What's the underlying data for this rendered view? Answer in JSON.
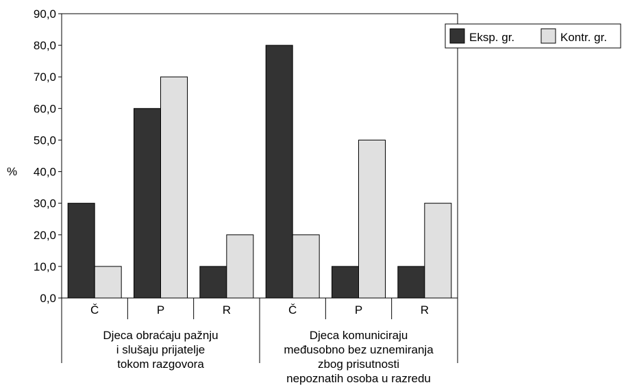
{
  "chart_data": {
    "type": "bar",
    "ylabel": "%",
    "ylim": [
      0,
      90
    ],
    "yticks": [
      "0,0",
      "10,0",
      "20,0",
      "30,0",
      "40,0",
      "50,0",
      "60,0",
      "70,0",
      "80,0",
      "90,0"
    ],
    "categories": [
      "Č",
      "P",
      "R",
      "Č",
      "P",
      "R"
    ],
    "groups": [
      {
        "lines": [
          "Djeca obraćaju pažnju",
          "i slušaju prijatelje",
          "tokom razgovora"
        ]
      },
      {
        "lines": [
          "Djeca komuniciraju",
          "međusobno bez uznemiranja",
          "zbog prisutnosti",
          "nepoznatih osoba u razredu"
        ]
      }
    ],
    "series": [
      {
        "name": "Eksp. gr.",
        "color": "#333333",
        "values": [
          30,
          60,
          10,
          80,
          10,
          10
        ]
      },
      {
        "name": "Kontr. gr.",
        "color": "#e0e0e0",
        "values": [
          10,
          70,
          20,
          20,
          50,
          30
        ]
      }
    ],
    "legend_position": "top-right",
    "grid": false
  }
}
